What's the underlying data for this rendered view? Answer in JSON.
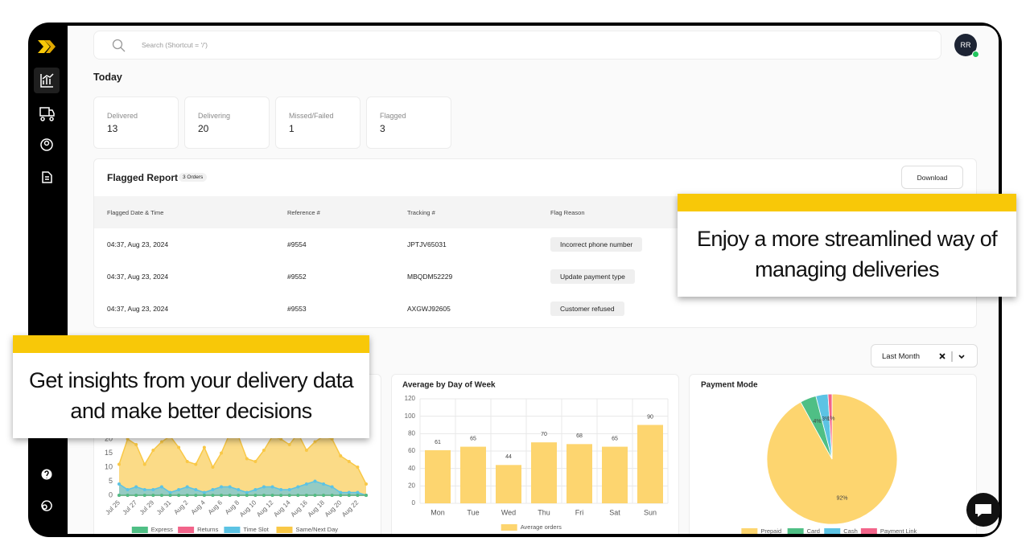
{
  "search_placeholder": "Search (Shortcut = '/')",
  "avatar": "RR",
  "section_title": "Today",
  "stats": [
    {
      "label": "Delivered",
      "value": 13
    },
    {
      "label": "Delivering",
      "value": 20
    },
    {
      "label": "Missed/Failed",
      "value": 1
    },
    {
      "label": "Flagged",
      "value": 3
    }
  ],
  "flagged_report": {
    "title": "Flagged Report",
    "badge": "3 Orders",
    "download": "Download",
    "columns": [
      "Flagged Date & Time",
      "Reference #",
      "Tracking #",
      "Flag Reason"
    ],
    "rows": [
      [
        "04:37, Aug 23, 2024",
        "#9554",
        "JPTJV65031",
        "Incorrect phone number"
      ],
      [
        "04:37, Aug 23, 2024",
        "#9552",
        "MBQDM52229",
        "Update payment type"
      ],
      [
        "04:37, Aug 23, 2024",
        "#9553",
        "AXGWJ92605",
        "Customer refused"
      ]
    ]
  },
  "filter": "Last Month",
  "callouts": [
    "Enjoy a more streamlined way of managing deliveries",
    "Get insights from your delivery data and make better decisions"
  ],
  "chart_data": [
    {
      "type": "area",
      "categories": [
        "Jul 25",
        null,
        "Jul 27",
        null,
        "Jul 29",
        null,
        "Jul 31",
        null,
        "Aug 2",
        null,
        "Aug 4",
        null,
        "Aug 6",
        null,
        "Aug 8",
        null,
        "Aug 10",
        null,
        "Aug 12",
        null,
        "Aug 14",
        null,
        "Aug 16",
        null,
        "Aug 18",
        null,
        "Aug 20",
        null,
        "Aug 22",
        null
      ],
      "series": [
        {
          "name": "Express",
          "color": "#4fbf85",
          "values": [
            0,
            0,
            0,
            0,
            0,
            0,
            0,
            0,
            0,
            0,
            0,
            0,
            0,
            0,
            0,
            0,
            0,
            0,
            0,
            0,
            0,
            0,
            0,
            0,
            0,
            0,
            0,
            0,
            0,
            0
          ]
        },
        {
          "name": "Returns",
          "color": "#f2648a",
          "values": [
            0,
            0,
            0,
            0,
            0,
            0,
            0,
            0,
            0,
            0,
            0,
            0,
            0,
            0,
            0,
            0,
            0,
            0,
            0,
            0,
            0,
            0,
            0,
            0,
            0,
            0,
            0,
            0,
            0,
            0
          ]
        },
        {
          "name": "Time Slot",
          "color": "#5cc3e4",
          "values": [
            4,
            2,
            3,
            2,
            2,
            3,
            1,
            2,
            3,
            2,
            1,
            2,
            3,
            3,
            2,
            1,
            2,
            3,
            3,
            2,
            2,
            3,
            4,
            5,
            4,
            3,
            1,
            1,
            1,
            0
          ]
        },
        {
          "name": "Same/Next Day",
          "color": "#f9c846",
          "values": [
            11,
            20,
            18,
            11,
            16,
            19,
            21,
            17,
            12,
            11,
            17,
            10,
            15,
            22,
            21,
            13,
            12,
            16,
            21,
            20,
            18,
            22,
            16,
            19,
            21,
            20,
            14,
            12,
            10,
            4
          ]
        }
      ],
      "ylim": [
        0,
        25
      ],
      "yticks": [
        0,
        5,
        10,
        15,
        20,
        25
      ],
      "grid": false
    },
    {
      "type": "bar",
      "title": "Average by Day of Week",
      "categories": [
        "Mon",
        "Tue",
        "Wed",
        "Thu",
        "Fri",
        "Sat",
        "Sun"
      ],
      "series": [
        {
          "name": "Average orders",
          "color": "#fdd56f",
          "values": [
            61,
            65,
            44,
            70,
            68,
            65,
            90
          ]
        }
      ],
      "ylim": [
        0,
        120
      ],
      "yticks": [
        0,
        20,
        40,
        60,
        80,
        100,
        120
      ],
      "grid": true
    },
    {
      "type": "pie",
      "title": "Payment Mode",
      "categories": [
        "Prepaid",
        "Card",
        "Cash",
        "Payment Link"
      ],
      "values": [
        92,
        4,
        3,
        1
      ],
      "value_labels": [
        "92%",
        "4%",
        "3%",
        "1%"
      ],
      "colors": [
        "#fdd56f",
        "#4fbf85",
        "#5cc3e4",
        "#f2648a"
      ]
    }
  ]
}
